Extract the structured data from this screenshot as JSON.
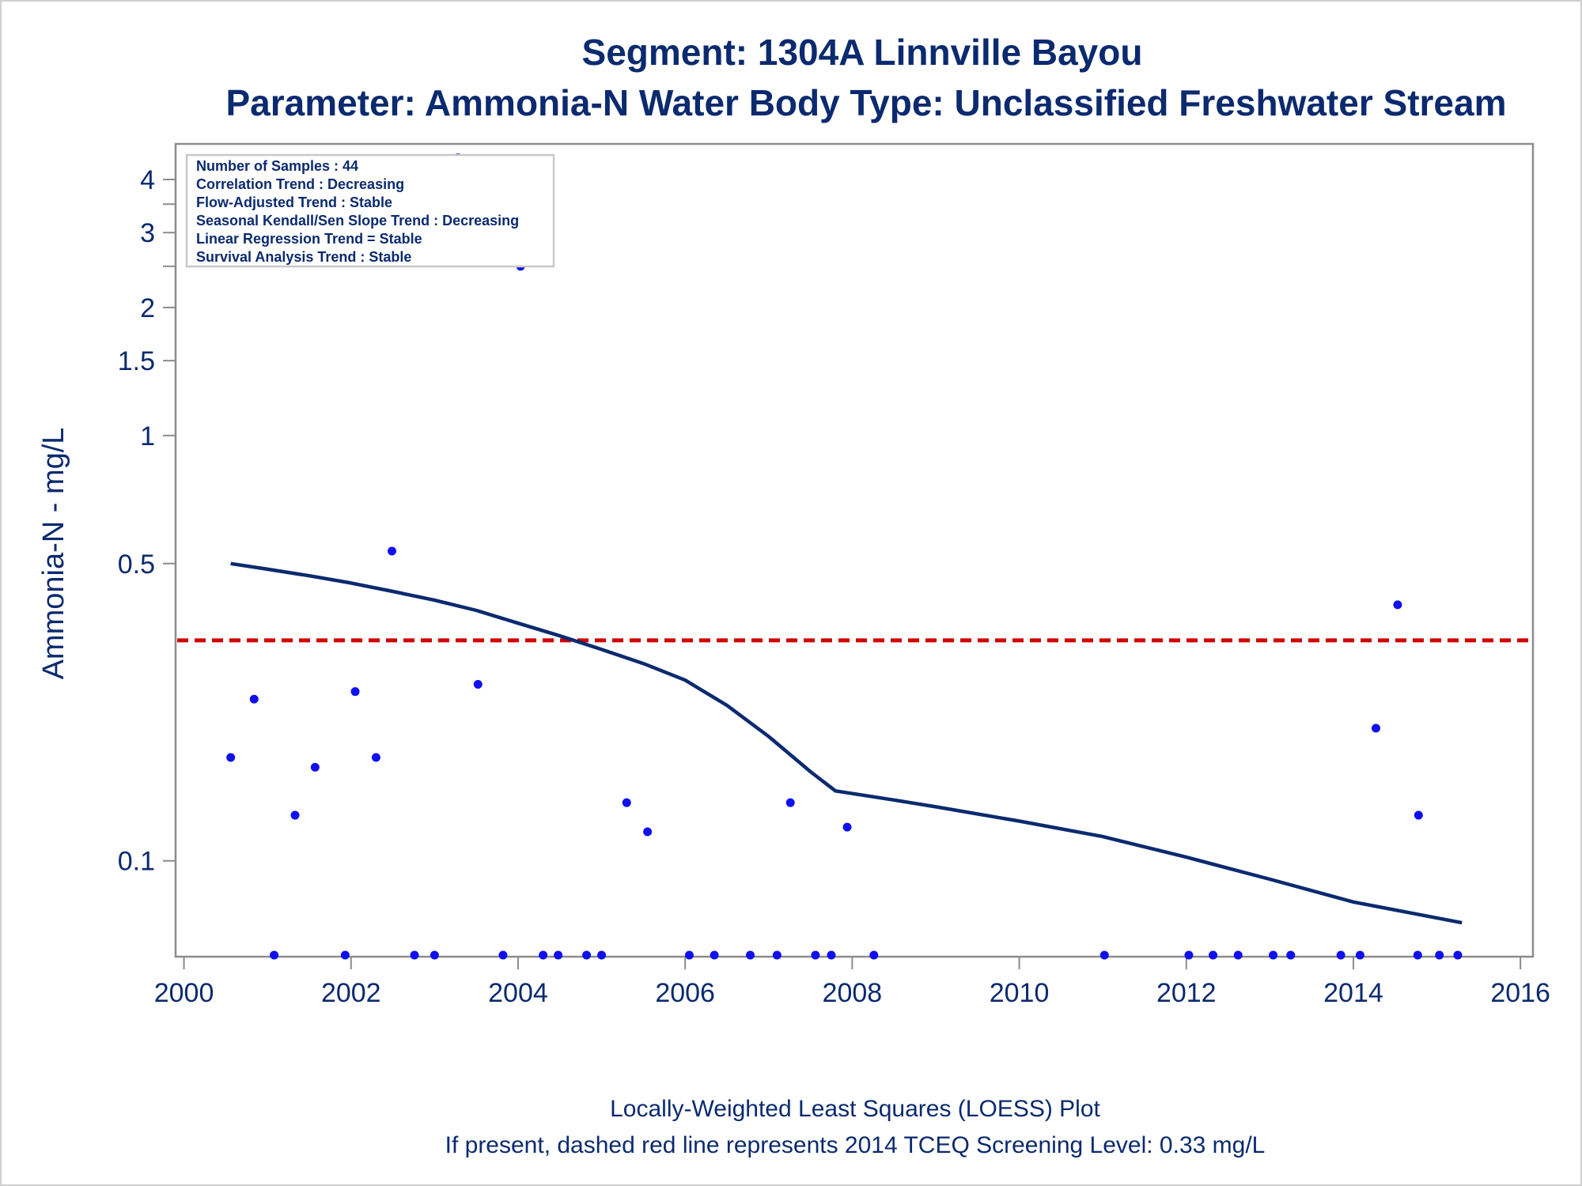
{
  "chart_data": {
    "type": "scatter",
    "title": "Segment: 1304A  Linnville Bayou",
    "subtitle": "Parameter: Ammonia-N   Water Body Type: Unclassified Freshwater Stream",
    "ylabel": "Ammonia-N - mg/L",
    "xlabel": "",
    "footer": [
      "Locally-Weighted Least Squares (LOESS) Plot",
      "If present, dashed red line represents 2014 TCEQ Screening Level: 0.33 mg/L"
    ],
    "legend_box": [
      "Number of Samples : 44",
      "Correlation Trend : Decreasing",
      "Flow-Adjusted Trend : Stable",
      "Seasonal Kendall/Sen Slope Trend : Decreasing",
      "Linear Regression Trend = Stable",
      "Survival Analysis Trend : Stable"
    ],
    "y_scale": "log",
    "ylim": [
      0.0595,
      4.85
    ],
    "xlim": [
      1999.9,
      2016.15
    ],
    "y_ticks": [
      {
        "value": 0.1,
        "label": "0.1"
      },
      {
        "value": 0.5,
        "label": "0.5"
      },
      {
        "value": 1,
        "label": "1"
      },
      {
        "value": 1.5,
        "label": "1.5"
      },
      {
        "value": 2,
        "label": "2"
      },
      {
        "value": 3,
        "label": "3"
      },
      {
        "value": 4,
        "label": "4"
      }
    ],
    "y_minor_ticks": [
      2.5,
      3.5
    ],
    "x_ticks": [
      {
        "value": 2000,
        "label": "2000"
      },
      {
        "value": 2002,
        "label": "2002"
      },
      {
        "value": 2004,
        "label": "2004"
      },
      {
        "value": 2006,
        "label": "2006"
      },
      {
        "value": 2008,
        "label": "2008"
      },
      {
        "value": 2010,
        "label": "2010"
      },
      {
        "value": 2012,
        "label": "2012"
      },
      {
        "value": 2014,
        "label": "2014"
      },
      {
        "value": 2016,
        "label": "2016"
      }
    ],
    "screening_level": 0.33,
    "points": [
      {
        "x": 2000.56,
        "y": 0.175
      },
      {
        "x": 2000.84,
        "y": 0.24
      },
      {
        "x": 2001.08,
        "y": 0.06
      },
      {
        "x": 2001.33,
        "y": 0.128
      },
      {
        "x": 2001.57,
        "y": 0.166
      },
      {
        "x": 2001.93,
        "y": 0.06
      },
      {
        "x": 2002.05,
        "y": 0.25
      },
      {
        "x": 2002.3,
        "y": 0.175
      },
      {
        "x": 2002.49,
        "y": 0.535
      },
      {
        "x": 2002.76,
        "y": 0.06
      },
      {
        "x": 2003.0,
        "y": 0.06
      },
      {
        "x": 2003.28,
        "y": 4.5
      },
      {
        "x": 2003.52,
        "y": 0.26
      },
      {
        "x": 2003.82,
        "y": 0.06
      },
      {
        "x": 2004.03,
        "y": 2.5
      },
      {
        "x": 2004.3,
        "y": 0.06
      },
      {
        "x": 2004.48,
        "y": 0.06
      },
      {
        "x": 2004.82,
        "y": 0.06
      },
      {
        "x": 2005.0,
        "y": 0.06
      },
      {
        "x": 2005.3,
        "y": 0.137
      },
      {
        "x": 2005.55,
        "y": 0.117
      },
      {
        "x": 2006.05,
        "y": 0.06
      },
      {
        "x": 2006.35,
        "y": 0.06
      },
      {
        "x": 2006.78,
        "y": 0.06
      },
      {
        "x": 2007.1,
        "y": 0.06
      },
      {
        "x": 2007.26,
        "y": 0.137
      },
      {
        "x": 2007.56,
        "y": 0.06
      },
      {
        "x": 2007.75,
        "y": 0.06
      },
      {
        "x": 2007.94,
        "y": 0.12
      },
      {
        "x": 2008.26,
        "y": 0.06
      },
      {
        "x": 2011.02,
        "y": 0.06
      },
      {
        "x": 2012.03,
        "y": 0.06
      },
      {
        "x": 2012.32,
        "y": 0.06
      },
      {
        "x": 2012.62,
        "y": 0.06
      },
      {
        "x": 2013.04,
        "y": 0.06
      },
      {
        "x": 2013.25,
        "y": 0.06
      },
      {
        "x": 2013.85,
        "y": 0.06
      },
      {
        "x": 2014.08,
        "y": 0.06
      },
      {
        "x": 2014.27,
        "y": 0.205
      },
      {
        "x": 2014.53,
        "y": 0.4
      },
      {
        "x": 2014.77,
        "y": 0.06
      },
      {
        "x": 2014.78,
        "y": 0.128
      },
      {
        "x": 2015.03,
        "y": 0.06
      },
      {
        "x": 2015.25,
        "y": 0.06
      }
    ],
    "loess": [
      {
        "x": 2000.56,
        "y": 0.5
      },
      {
        "x": 2001.0,
        "y": 0.485
      },
      {
        "x": 2001.5,
        "y": 0.468
      },
      {
        "x": 2002.0,
        "y": 0.45
      },
      {
        "x": 2002.5,
        "y": 0.43
      },
      {
        "x": 2003.0,
        "y": 0.41
      },
      {
        "x": 2003.5,
        "y": 0.388
      },
      {
        "x": 2004.0,
        "y": 0.362
      },
      {
        "x": 2004.5,
        "y": 0.338
      },
      {
        "x": 2005.0,
        "y": 0.314
      },
      {
        "x": 2005.5,
        "y": 0.291
      },
      {
        "x": 2006.0,
        "y": 0.266
      },
      {
        "x": 2006.5,
        "y": 0.232
      },
      {
        "x": 2007.0,
        "y": 0.196
      },
      {
        "x": 2007.5,
        "y": 0.162
      },
      {
        "x": 2007.8,
        "y": 0.146
      },
      {
        "x": 2008.5,
        "y": 0.139
      },
      {
        "x": 2009.0,
        "y": 0.134
      },
      {
        "x": 2010.0,
        "y": 0.124
      },
      {
        "x": 2011.0,
        "y": 0.114
      },
      {
        "x": 2012.0,
        "y": 0.102
      },
      {
        "x": 2013.0,
        "y": 0.0905
      },
      {
        "x": 2014.0,
        "y": 0.08
      },
      {
        "x": 2015.3,
        "y": 0.0715
      }
    ],
    "colors": {
      "text": "#0b2a6f",
      "points": "#1010ee",
      "loess": "#0b2a6f",
      "screening": "#d00000",
      "axes": "#8c8c8c"
    }
  }
}
